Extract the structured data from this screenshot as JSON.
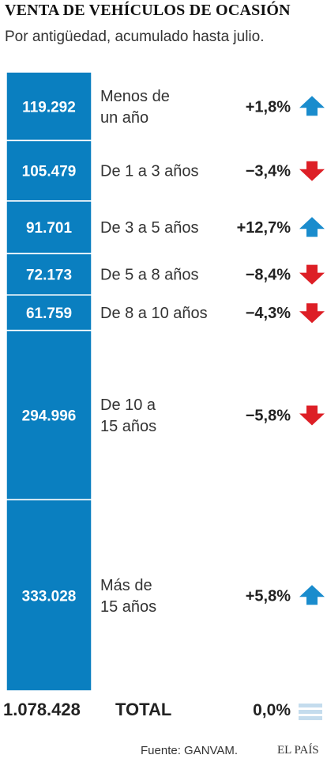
{
  "header": {
    "title": "VENTA DE VEHÍCULOS DE OCASIÓN",
    "subtitle": "Por antigüedad, acumulado hasta julio."
  },
  "colors": {
    "bar": "#0a7fc0",
    "up": "#1a8ccd",
    "down": "#dd1f26",
    "neutral": "#c4dced"
  },
  "chart_data": {
    "type": "bar",
    "orientation": "stacked-vertical",
    "categories": [
      "Menos de un año",
      "De 1 a 3 años",
      "De 3 a 5 años",
      "De 5 a 8 años",
      "De 8 a 10 años",
      "De 10 a 15 años",
      "Más de 15 años"
    ],
    "category_lines": [
      [
        "Menos de",
        "un año"
      ],
      [
        "De 1 a 3 años"
      ],
      [
        "De 3 a 5 años"
      ],
      [
        "De 5 a 8 años"
      ],
      [
        "De 8 a 10 años"
      ],
      [
        "De 10 a",
        "15 años"
      ],
      [
        "Más de",
        "15 años"
      ]
    ],
    "values": [
      119292,
      105479,
      91701,
      72173,
      61759,
      294996,
      333028
    ],
    "value_labels": [
      "119.292",
      "105.479",
      "91.701",
      "72.173",
      "61.759",
      "294.996",
      "333.028"
    ],
    "changes": [
      "+1,8%",
      "−3,4%",
      "+12,7%",
      "−8,4%",
      "−4,3%",
      "−5,8%",
      "+5,8%"
    ],
    "directions": [
      "up",
      "down",
      "up",
      "down",
      "down",
      "down",
      "up"
    ],
    "legend": "none",
    "grid": false
  },
  "total": {
    "value": "1.078.428",
    "label": "TOTAL",
    "change": "0,0%",
    "direction": "neutral"
  },
  "footer": {
    "source": "Fuente: GANVAM.",
    "brand": "EL PAÍS"
  }
}
